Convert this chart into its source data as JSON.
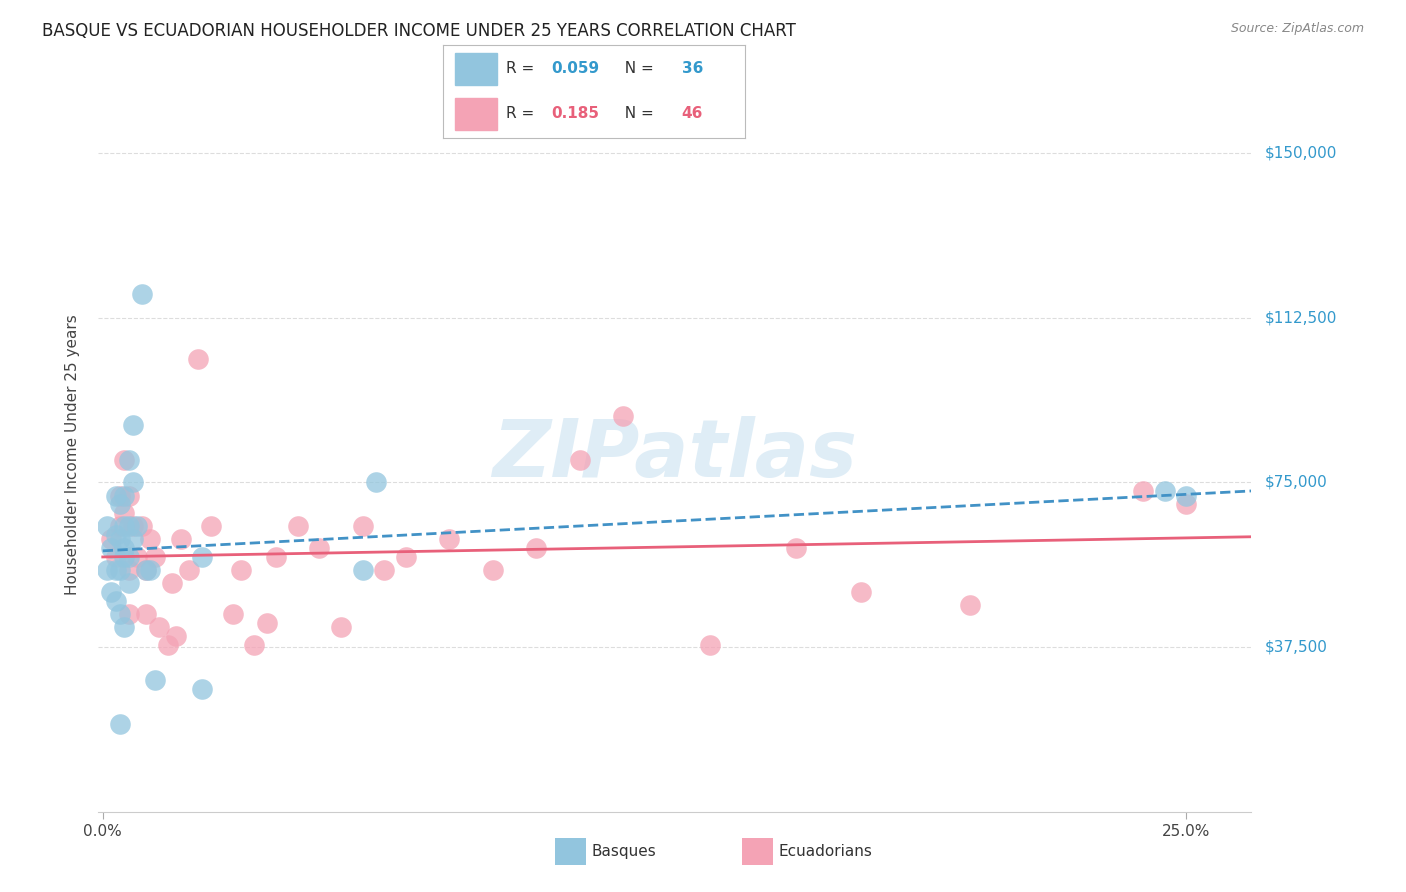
{
  "title": "BASQUE VS ECUADORIAN HOUSEHOLDER INCOME UNDER 25 YEARS CORRELATION CHART",
  "source": "Source: ZipAtlas.com",
  "ylabel": "Householder Income Under 25 years",
  "ytick_values": [
    37500,
    75000,
    112500,
    150000
  ],
  "ytick_labels": [
    "$37,500",
    "$75,000",
    "$112,500",
    "$150,000"
  ],
  "ymin": 0,
  "ymax": 162500,
  "xmin": -0.001,
  "xmax": 0.265,
  "watermark_text": "ZIPatlas",
  "blue_color": "#92c5de",
  "pink_color": "#f4a3b5",
  "blue_line_color": "#4292c6",
  "pink_line_color": "#e8607a",
  "label_color": "#3399cc",
  "basques_x": [
    0.001,
    0.001,
    0.002,
    0.002,
    0.003,
    0.003,
    0.003,
    0.003,
    0.004,
    0.004,
    0.004,
    0.004,
    0.005,
    0.005,
    0.005,
    0.005,
    0.005,
    0.006,
    0.006,
    0.006,
    0.006,
    0.007,
    0.007,
    0.007,
    0.008,
    0.009,
    0.01,
    0.011,
    0.012,
    0.023,
    0.023,
    0.06,
    0.063,
    0.245,
    0.25,
    0.004
  ],
  "basques_y": [
    55000,
    65000,
    60000,
    50000,
    63000,
    55000,
    72000,
    48000,
    70000,
    62000,
    55000,
    45000,
    72000,
    65000,
    58000,
    42000,
    60000,
    80000,
    65000,
    52000,
    58000,
    88000,
    75000,
    62000,
    65000,
    118000,
    55000,
    55000,
    30000,
    58000,
    28000,
    55000,
    75000,
    73000,
    72000,
    20000
  ],
  "ecuadorians_x": [
    0.002,
    0.003,
    0.004,
    0.004,
    0.005,
    0.005,
    0.006,
    0.006,
    0.006,
    0.007,
    0.008,
    0.009,
    0.01,
    0.01,
    0.011,
    0.012,
    0.013,
    0.015,
    0.016,
    0.017,
    0.018,
    0.02,
    0.022,
    0.025,
    0.03,
    0.032,
    0.035,
    0.038,
    0.04,
    0.045,
    0.05,
    0.055,
    0.06,
    0.065,
    0.07,
    0.08,
    0.09,
    0.1,
    0.11,
    0.12,
    0.14,
    0.16,
    0.175,
    0.2,
    0.24,
    0.25
  ],
  "ecuadorians_y": [
    62000,
    58000,
    72000,
    65000,
    80000,
    68000,
    72000,
    55000,
    45000,
    65000,
    58000,
    65000,
    55000,
    45000,
    62000,
    58000,
    42000,
    38000,
    52000,
    40000,
    62000,
    55000,
    103000,
    65000,
    45000,
    55000,
    38000,
    43000,
    58000,
    65000,
    60000,
    42000,
    65000,
    55000,
    58000,
    62000,
    55000,
    60000,
    80000,
    90000,
    38000,
    60000,
    50000,
    47000,
    73000,
    70000
  ]
}
